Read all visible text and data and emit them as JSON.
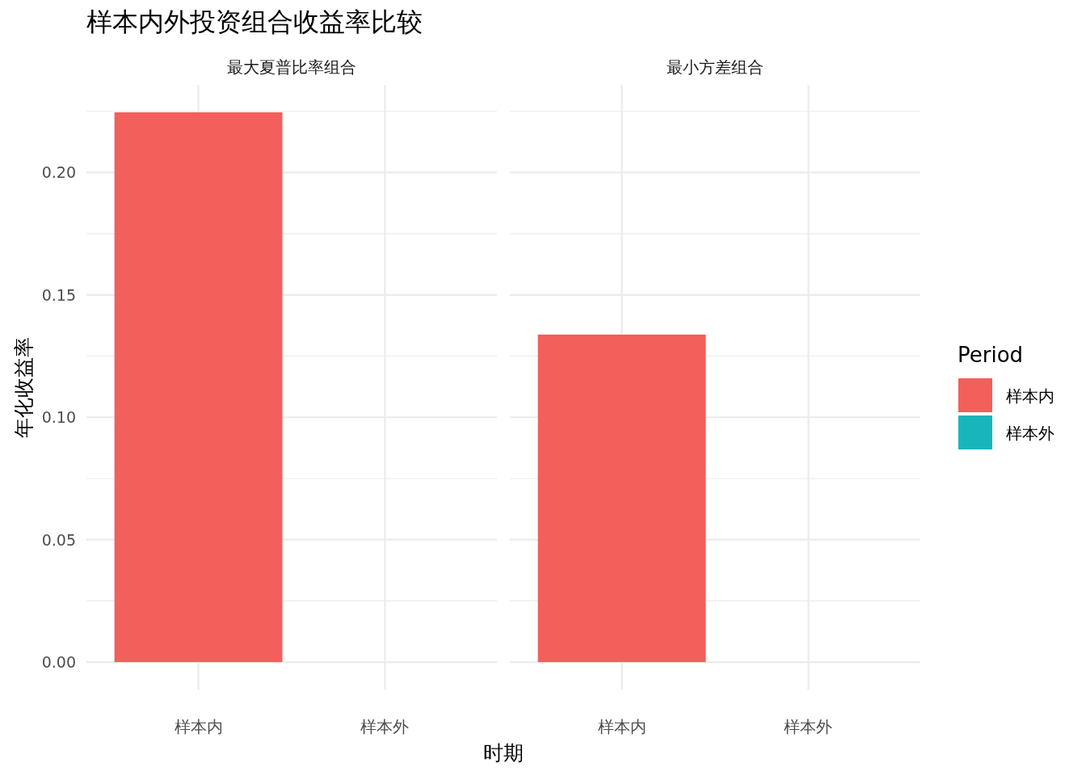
{
  "chart_data": [
    {
      "type": "bar",
      "title": "样本内外投资组合收益率比较",
      "subtitle": "最大夏普比率组合",
      "xlabel": "时期",
      "ylabel": "年化收益率",
      "legend_title": "Period",
      "legend": "right",
      "grid": true,
      "categories": [
        "样本内",
        "样本外"
      ],
      "series": [
        {
          "name": "样本内",
          "color": "#f35f5a",
          "values": [
            0.2246,
            null
          ]
        },
        {
          "name": "样本外",
          "color": "#19b5bd",
          "values": [
            null,
            null
          ]
        }
      ],
      "ylim": [
        -0.0112,
        0.2358
      ],
      "yticks": [
        {
          "value": 0,
          "label": "0.00"
        },
        {
          "value": 0.025,
          "label": null
        },
        {
          "value": 0.05,
          "label": "0.05"
        },
        {
          "value": 0.075,
          "label": null
        },
        {
          "value": 0.1,
          "label": "0.10"
        },
        {
          "value": 0.125,
          "label": null
        },
        {
          "value": 0.15,
          "label": "0.15"
        },
        {
          "value": 0.175,
          "label": null
        },
        {
          "value": 0.2,
          "label": "0.20"
        },
        {
          "value": 0.225,
          "label": null
        }
      ]
    },
    {
      "type": "bar",
      "subtitle": "最小方差组合",
      "grid": true,
      "tick_labels": "x",
      "categories": [
        "样本内",
        "样本外"
      ],
      "series": [
        {
          "color": "#f35f5a",
          "values": [
            0.1338,
            null
          ]
        }
      ],
      "ylim": [
        -0.0112,
        0.2358
      ],
      "yticks": [
        {
          "value": 0,
          "label": null
        },
        {
          "value": 0.025,
          "label": null
        },
        {
          "value": 0.05,
          "label": null
        },
        {
          "value": 0.075,
          "label": null
        },
        {
          "value": 0.1,
          "label": null
        },
        {
          "value": 0.125,
          "label": null
        },
        {
          "value": 0.15,
          "label": null
        },
        {
          "value": 0.175,
          "label": null
        },
        {
          "value": 0.2,
          "label": null
        },
        {
          "value": 0.225,
          "label": null
        }
      ]
    }
  ]
}
